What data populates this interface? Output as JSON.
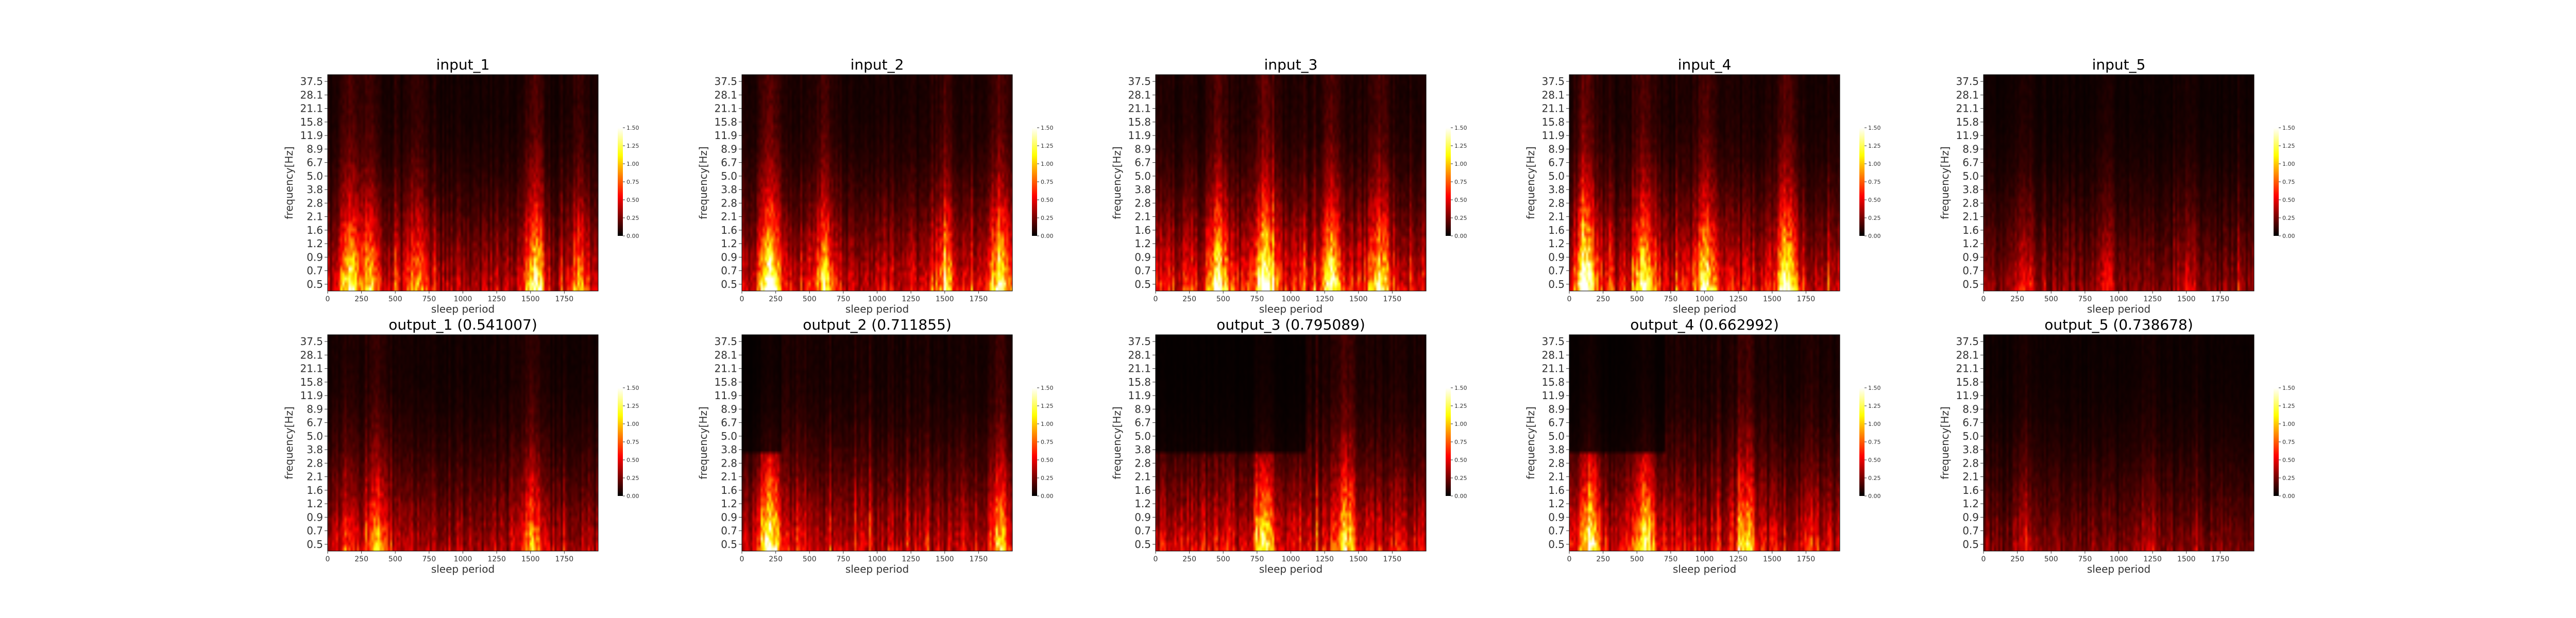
{
  "figure": {
    "colormap": "hot",
    "background": "#ffffff"
  },
  "chart_data": [
    {
      "type": "heatmap",
      "title": "input_1",
      "xlabel": "sleep period",
      "ylabel": "frequency[Hz]",
      "xticks": [
        0,
        250,
        500,
        750,
        1000,
        1250,
        1500,
        1750
      ],
      "xlim": [
        0,
        2000
      ],
      "yticks": [
        "0.5",
        "0.7",
        "0.9",
        "1.2",
        "1.6",
        "2.1",
        "2.8",
        "3.8",
        "5.0",
        "6.7",
        "8.9",
        "11.9",
        "15.8",
        "21.1",
        "28.1",
        "37.5"
      ],
      "colorbar_ticks": [
        "0.00",
        "0.25",
        "0.50",
        "0.75",
        "1.00",
        "1.25",
        "1.50"
      ],
      "clim": [
        0,
        1.5
      ],
      "seed": 11,
      "overall": 0.65,
      "bursts": [
        [
          150,
          1.3
        ],
        [
          300,
          1.0
        ],
        [
          650,
          0.9
        ],
        [
          1520,
          1.5
        ],
        [
          1850,
          0.8
        ]
      ],
      "step_at": null
    },
    {
      "type": "heatmap",
      "title": "input_2",
      "xlabel": "sleep period",
      "ylabel": "frequency[Hz]",
      "xticks": [
        0,
        250,
        500,
        750,
        1000,
        1250,
        1500,
        1750
      ],
      "xlim": [
        0,
        2000
      ],
      "yticks": [
        "0.5",
        "0.7",
        "0.9",
        "1.2",
        "1.6",
        "2.1",
        "2.8",
        "3.8",
        "5.0",
        "6.7",
        "8.9",
        "11.9",
        "15.8",
        "21.1",
        "28.1",
        "37.5"
      ],
      "colorbar_ticks": [
        "0.00",
        "0.25",
        "0.50",
        "0.75",
        "1.00",
        "1.25",
        "1.50"
      ],
      "clim": [
        0,
        1.5
      ],
      "seed": 23,
      "overall": 0.75,
      "bursts": [
        [
          200,
          1.5
        ],
        [
          600,
          0.9
        ],
        [
          1500,
          0.8
        ],
        [
          1900,
          1.2
        ]
      ],
      "step_at": null
    },
    {
      "type": "heatmap",
      "title": "input_3",
      "xlabel": "sleep period",
      "ylabel": "frequency[Hz]",
      "xticks": [
        0,
        250,
        500,
        750,
        1000,
        1250,
        1500,
        1750
      ],
      "xlim": [
        0,
        2000
      ],
      "yticks": [
        "0.5",
        "0.7",
        "0.9",
        "1.2",
        "1.6",
        "2.1",
        "2.8",
        "3.8",
        "5.0",
        "6.7",
        "8.9",
        "11.9",
        "15.8",
        "21.1",
        "28.1",
        "37.5"
      ],
      "colorbar_ticks": [
        "0.00",
        "0.25",
        "0.50",
        "0.75",
        "1.00",
        "1.25",
        "1.50"
      ],
      "clim": [
        0,
        1.5
      ],
      "seed": 37,
      "overall": 0.85,
      "bursts": [
        [
          450,
          1.0
        ],
        [
          800,
          1.3
        ],
        [
          1300,
          1.0
        ],
        [
          1650,
          0.9
        ]
      ],
      "step_at": null
    },
    {
      "type": "heatmap",
      "title": "input_4",
      "xlabel": "sleep period",
      "ylabel": "frequency[Hz]",
      "xticks": [
        0,
        250,
        500,
        750,
        1000,
        1250,
        1500,
        1750
      ],
      "xlim": [
        0,
        2000
      ],
      "yticks": [
        "0.5",
        "0.7",
        "0.9",
        "1.2",
        "1.6",
        "2.1",
        "2.8",
        "3.8",
        "5.0",
        "6.7",
        "8.9",
        "11.9",
        "15.8",
        "21.1",
        "28.1",
        "37.5"
      ],
      "colorbar_ticks": [
        "0.00",
        "0.25",
        "0.50",
        "0.75",
        "1.00",
        "1.25",
        "1.50"
      ],
      "clim": [
        0,
        1.5
      ],
      "seed": 41,
      "overall": 0.8,
      "bursts": [
        [
          120,
          1.4
        ],
        [
          550,
          1.2
        ],
        [
          1000,
          1.0
        ],
        [
          1600,
          1.1
        ]
      ],
      "step_at": null
    },
    {
      "type": "heatmap",
      "title": "input_5",
      "xlabel": "sleep period",
      "ylabel": "frequency[Hz]",
      "xticks": [
        0,
        250,
        500,
        750,
        1000,
        1250,
        1500,
        1750
      ],
      "xlim": [
        0,
        2000
      ],
      "yticks": [
        "0.5",
        "0.7",
        "0.9",
        "1.2",
        "1.6",
        "2.1",
        "2.8",
        "3.8",
        "5.0",
        "6.7",
        "8.9",
        "11.9",
        "15.8",
        "21.1",
        "28.1",
        "37.5"
      ],
      "colorbar_ticks": [
        "0.00",
        "0.25",
        "0.50",
        "0.75",
        "1.00",
        "1.25",
        "1.50"
      ],
      "clim": [
        0,
        1.5
      ],
      "seed": 53,
      "overall": 0.45,
      "bursts": [
        [
          300,
          0.7
        ],
        [
          900,
          0.6
        ],
        [
          1500,
          0.5
        ]
      ],
      "step_at": null
    },
    {
      "type": "heatmap",
      "title": "output_1 (0.541007)",
      "xlabel": "sleep period",
      "ylabel": "frequency[Hz]",
      "xticks": [
        0,
        250,
        500,
        750,
        1000,
        1250,
        1500,
        1750
      ],
      "xlim": [
        0,
        2000
      ],
      "yticks": [
        "0.5",
        "0.7",
        "0.9",
        "1.2",
        "1.6",
        "2.1",
        "2.8",
        "3.8",
        "5.0",
        "6.7",
        "8.9",
        "11.9",
        "15.8",
        "21.1",
        "28.1",
        "37.5"
      ],
      "colorbar_ticks": [
        "0.00",
        "0.25",
        "0.50",
        "0.75",
        "1.00",
        "1.25",
        "1.50"
      ],
      "clim": [
        0,
        1.5
      ],
      "seed": 61,
      "overall": 0.6,
      "bursts": [
        [
          350,
          1.0
        ],
        [
          1500,
          1.0
        ],
        [
          150,
          0.6
        ]
      ],
      "step_at": null
    },
    {
      "type": "heatmap",
      "title": "output_2 (0.711855)",
      "xlabel": "sleep period",
      "ylabel": "frequency[Hz]",
      "xticks": [
        0,
        250,
        500,
        750,
        1000,
        1250,
        1500,
        1750
      ],
      "xlim": [
        0,
        2000
      ],
      "yticks": [
        "0.5",
        "0.7",
        "0.9",
        "1.2",
        "1.6",
        "2.1",
        "2.8",
        "3.8",
        "5.0",
        "6.7",
        "8.9",
        "11.9",
        "15.8",
        "21.1",
        "28.1",
        "37.5"
      ],
      "colorbar_ticks": [
        "0.00",
        "0.25",
        "0.50",
        "0.75",
        "1.00",
        "1.25",
        "1.50"
      ],
      "clim": [
        0,
        1.5
      ],
      "seed": 73,
      "overall": 0.7,
      "bursts": [
        [
          200,
          1.5
        ],
        [
          1900,
          0.9
        ]
      ],
      "step_at": 280
    },
    {
      "type": "heatmap",
      "title": "output_3 (0.795089)",
      "xlabel": "sleep period",
      "ylabel": "frequency[Hz]",
      "xticks": [
        0,
        250,
        500,
        750,
        1000,
        1250,
        1500,
        1750
      ],
      "xlim": [
        0,
        2000
      ],
      "yticks": [
        "0.5",
        "0.7",
        "0.9",
        "1.2",
        "1.6",
        "2.1",
        "2.8",
        "3.8",
        "5.0",
        "6.7",
        "8.9",
        "11.9",
        "15.8",
        "21.1",
        "28.1",
        "37.5"
      ],
      "colorbar_ticks": [
        "0.00",
        "0.25",
        "0.50",
        "0.75",
        "1.00",
        "1.25",
        "1.50"
      ],
      "clim": [
        0,
        1.5
      ],
      "seed": 89,
      "overall": 0.8,
      "bursts": [
        [
          800,
          1.0
        ],
        [
          1400,
          0.9
        ]
      ],
      "step_at": 1100
    },
    {
      "type": "heatmap",
      "title": "output_4 (0.662992)",
      "xlabel": "sleep period",
      "ylabel": "frequency[Hz]",
      "xticks": [
        0,
        250,
        500,
        750,
        1000,
        1250,
        1500,
        1750
      ],
      "xlim": [
        0,
        2000
      ],
      "yticks": [
        "0.5",
        "0.7",
        "0.9",
        "1.2",
        "1.6",
        "2.1",
        "2.8",
        "3.8",
        "5.0",
        "6.7",
        "8.9",
        "11.9",
        "15.8",
        "21.1",
        "28.1",
        "37.5"
      ],
      "colorbar_ticks": [
        "0.00",
        "0.25",
        "0.50",
        "0.75",
        "1.00",
        "1.25",
        "1.50"
      ],
      "clim": [
        0,
        1.5
      ],
      "seed": 97,
      "overall": 0.75,
      "bursts": [
        [
          150,
          1.3
        ],
        [
          550,
          1.2
        ],
        [
          1300,
          0.8
        ]
      ],
      "step_at": 700
    },
    {
      "type": "heatmap",
      "title": "output_5 (0.738678)",
      "xlabel": "sleep period",
      "ylabel": "frequency[Hz]",
      "xticks": [
        0,
        250,
        500,
        750,
        1000,
        1250,
        1500,
        1750
      ],
      "xlim": [
        0,
        2000
      ],
      "yticks": [
        "0.5",
        "0.7",
        "0.9",
        "1.2",
        "1.6",
        "2.1",
        "2.8",
        "3.8",
        "5.0",
        "6.7",
        "8.9",
        "11.9",
        "15.8",
        "21.1",
        "28.1",
        "37.5"
      ],
      "colorbar_ticks": [
        "0.00",
        "0.25",
        "0.50",
        "0.75",
        "1.00",
        "1.25",
        "1.50"
      ],
      "clim": [
        0,
        1.5
      ],
      "seed": 101,
      "overall": 0.4,
      "bursts": [
        [
          300,
          0.5
        ],
        [
          1200,
          0.45
        ]
      ],
      "step_at": null
    }
  ]
}
